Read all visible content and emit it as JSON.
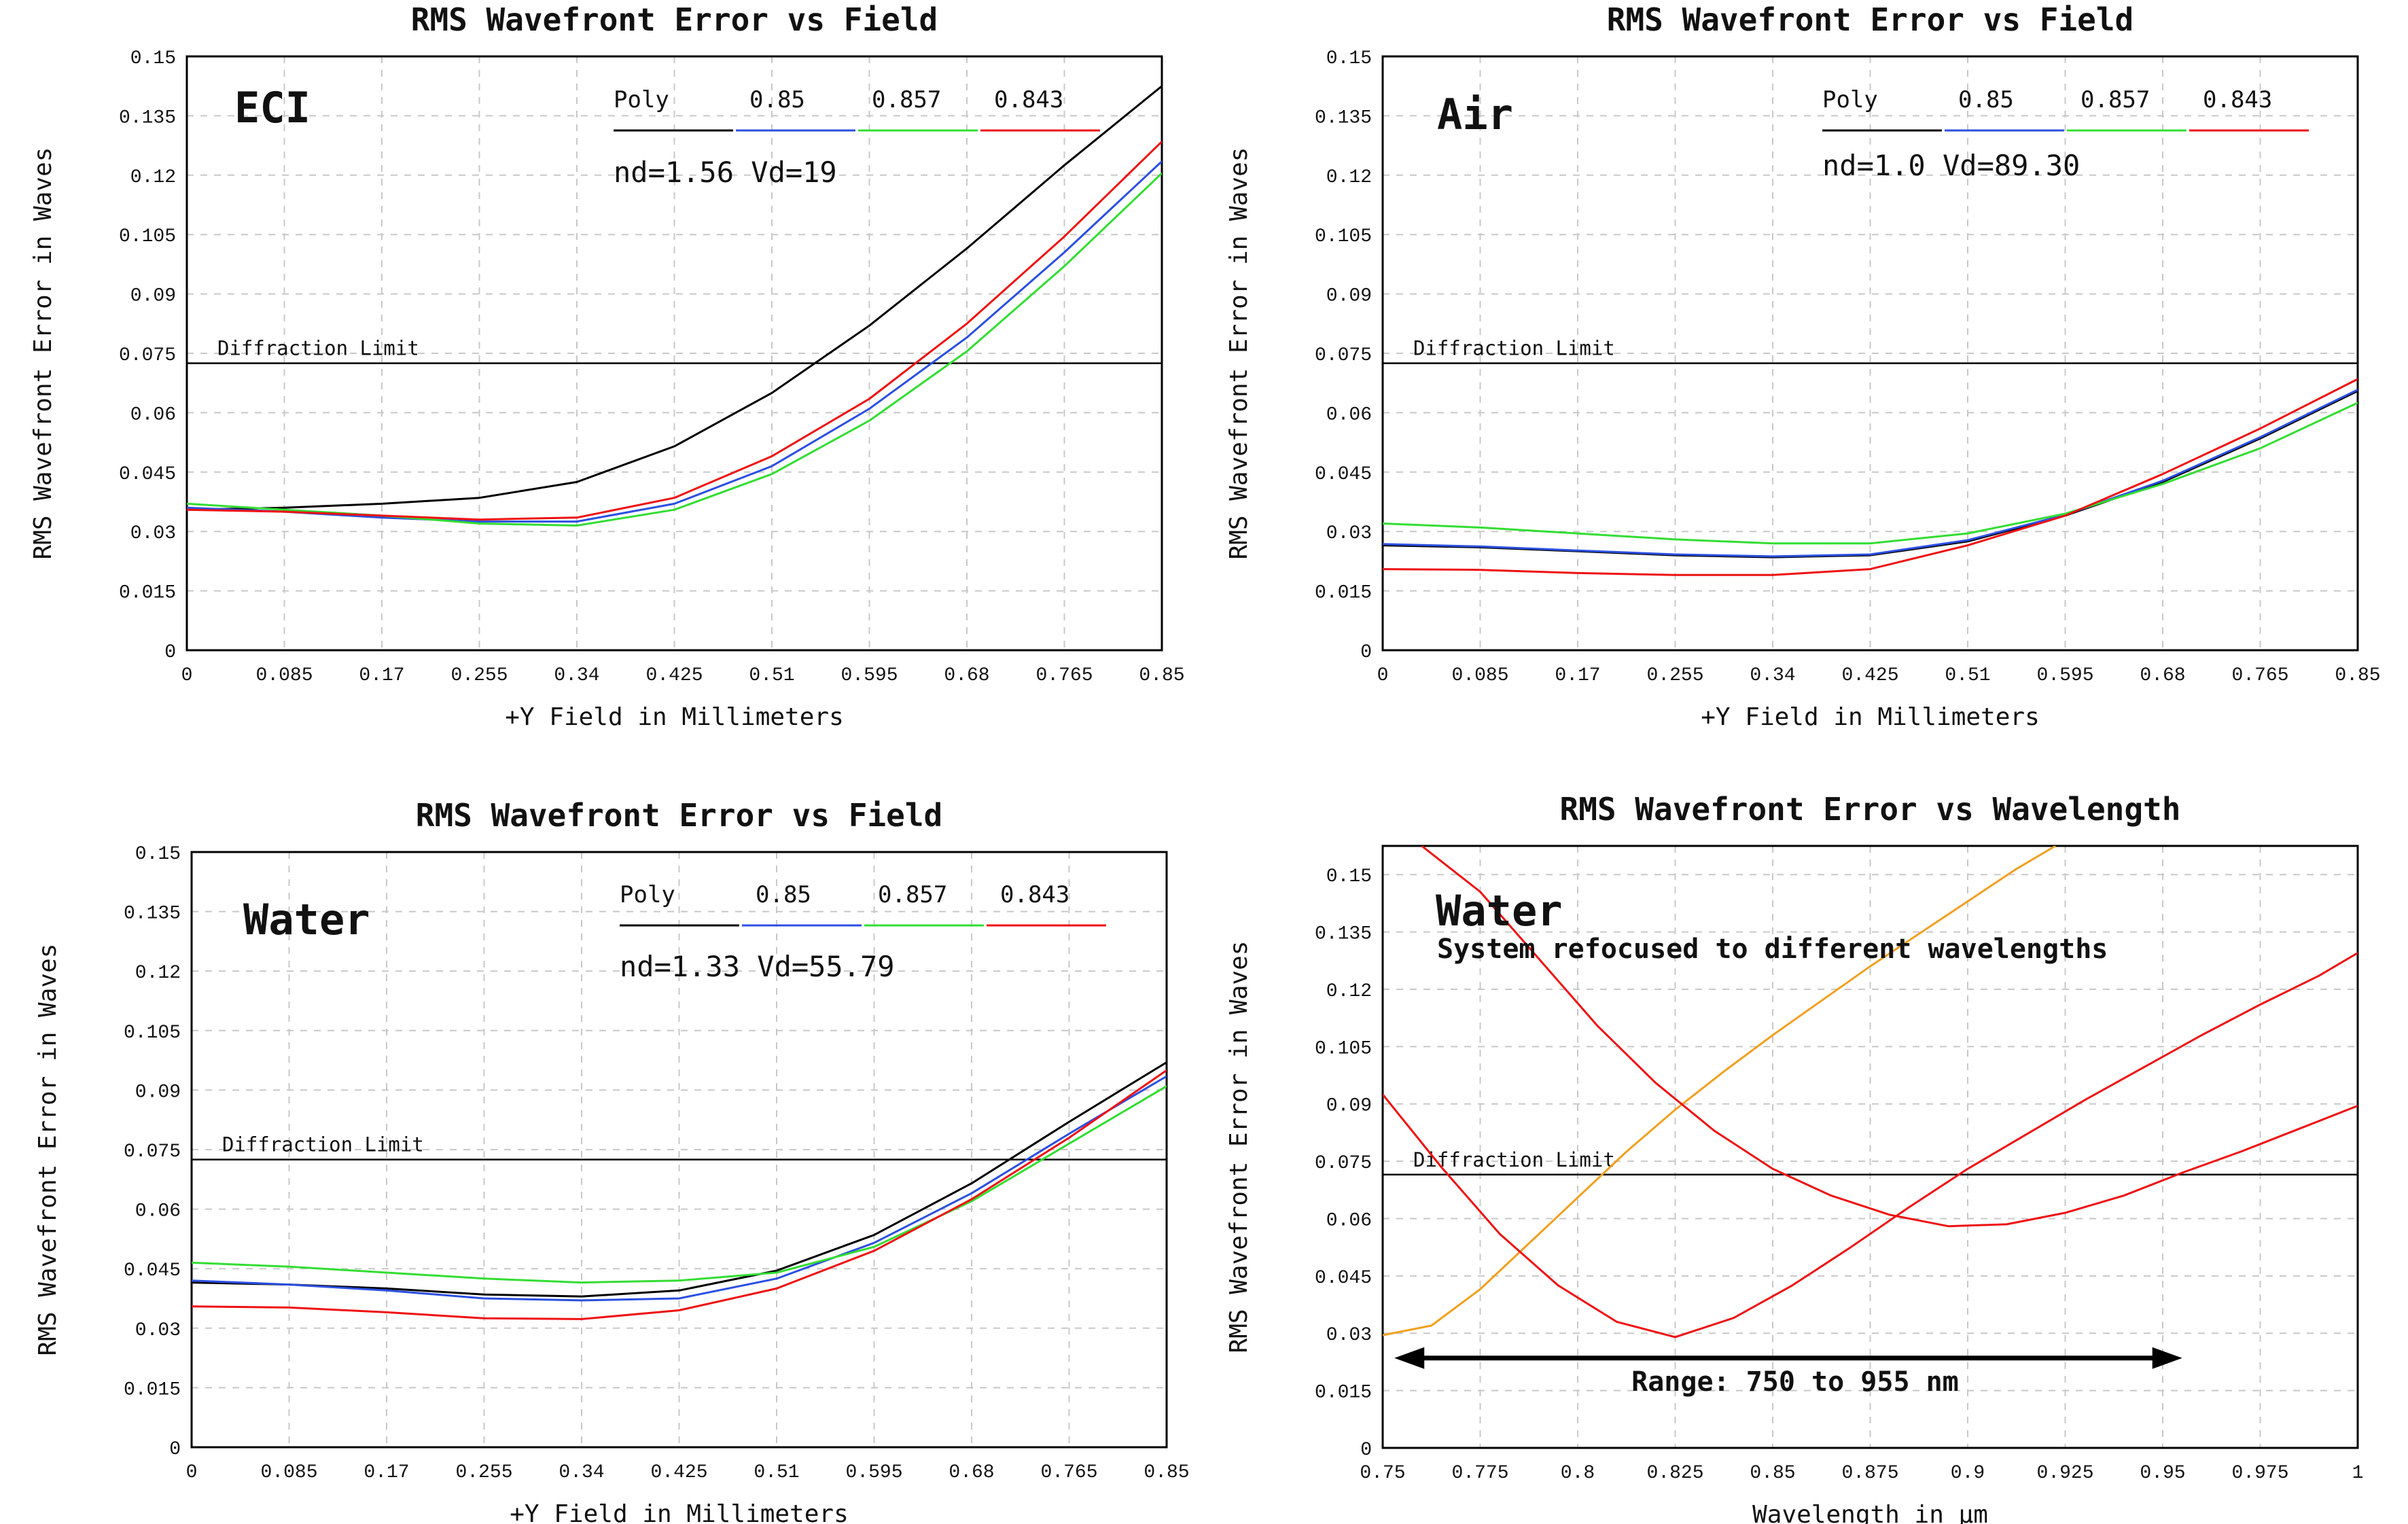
{
  "chart_data": [
    {
      "type": "line",
      "title": "RMS Wavefront Error vs Field",
      "xlabel": "+Y Field in Millimeters",
      "ylabel": "RMS Wavefront Error in Waves",
      "xlim": [
        0,
        0.85
      ],
      "ylim": [
        0,
        0.15
      ],
      "xticks": [
        "0",
        "0.085",
        "0.17",
        "0.255",
        "0.34",
        "0.425",
        "0.51",
        "0.595",
        "0.68",
        "0.765",
        "0.85"
      ],
      "yticks": [
        "0",
        "0.015",
        "0.03",
        "0.045",
        "0.06",
        "0.075",
        "0.09",
        "0.105",
        "0.12",
        "0.135",
        "0.15"
      ],
      "grid": true,
      "label": "ECI",
      "note": "nd=1.56 Vd=19",
      "legend": {
        "placement": "top-right",
        "entries": [
          "Poly",
          "0.85",
          "0.857",
          "0.843"
        ]
      },
      "reference_line": {
        "label": "Diffraction Limit",
        "value": 0.0725
      },
      "x": [
        0,
        0.085,
        0.17,
        0.255,
        0.34,
        0.425,
        0.51,
        0.595,
        0.68,
        0.765,
        0.85
      ],
      "series": [
        {
          "name": "Poly",
          "color": "#000000",
          "values": [
            0.0355,
            0.036,
            0.037,
            0.0385,
            0.0425,
            0.0515,
            0.065,
            0.082,
            0.1015,
            0.1225,
            0.1425
          ]
        },
        {
          "name": "0.85",
          "color": "#2b4fe0",
          "values": [
            0.036,
            0.035,
            0.0335,
            0.0325,
            0.0325,
            0.037,
            0.0465,
            0.061,
            0.079,
            0.1005,
            0.1235
          ]
        },
        {
          "name": "0.857",
          "color": "#33dd33",
          "values": [
            0.037,
            0.0355,
            0.034,
            0.032,
            0.0315,
            0.0355,
            0.0445,
            0.058,
            0.0755,
            0.097,
            0.1205
          ]
        },
        {
          "name": "0.843",
          "color": "#ee1111",
          "values": [
            0.0355,
            0.035,
            0.034,
            0.033,
            0.0335,
            0.0385,
            0.049,
            0.0635,
            0.0825,
            0.1045,
            0.1285
          ]
        }
      ]
    },
    {
      "type": "line",
      "title": "RMS Wavefront Error vs Field",
      "xlabel": "+Y Field in Millimeters",
      "ylabel": "RMS Wavefront Error in Waves",
      "xlim": [
        0,
        0.85
      ],
      "ylim": [
        0,
        0.15
      ],
      "xticks": [
        "0",
        "0.085",
        "0.17",
        "0.255",
        "0.34",
        "0.425",
        "0.51",
        "0.595",
        "0.68",
        "0.765",
        "0.85"
      ],
      "yticks": [
        "0",
        "0.015",
        "0.03",
        "0.045",
        "0.06",
        "0.075",
        "0.09",
        "0.105",
        "0.12",
        "0.135",
        "0.15"
      ],
      "grid": true,
      "label": "Air",
      "note": "nd=1.0 Vd=89.30",
      "legend": {
        "placement": "top-right",
        "entries": [
          "Poly",
          "0.85",
          "0.857",
          "0.843"
        ]
      },
      "reference_line": {
        "label": "Diffraction Limit",
        "value": 0.0725
      },
      "x": [
        0,
        0.085,
        0.17,
        0.255,
        0.34,
        0.425,
        0.51,
        0.595,
        0.68,
        0.765,
        0.85
      ],
      "series": [
        {
          "name": "Poly",
          "color": "#000000",
          "values": [
            0.0265,
            0.026,
            0.025,
            0.024,
            0.0235,
            0.024,
            0.0275,
            0.034,
            0.0425,
            0.0535,
            0.0655
          ]
        },
        {
          "name": "0.85",
          "color": "#2b4fe0",
          "values": [
            0.0268,
            0.0262,
            0.0252,
            0.0242,
            0.0237,
            0.0242,
            0.0278,
            0.0342,
            0.0428,
            0.0538,
            0.0658
          ]
        },
        {
          "name": "0.857",
          "color": "#33dd33",
          "values": [
            0.032,
            0.031,
            0.0295,
            0.028,
            0.027,
            0.027,
            0.0295,
            0.0345,
            0.042,
            0.051,
            0.0625
          ]
        },
        {
          "name": "0.843",
          "color": "#ee1111",
          "values": [
            0.0205,
            0.0203,
            0.0195,
            0.019,
            0.019,
            0.0205,
            0.0265,
            0.034,
            0.0445,
            0.056,
            0.0685
          ]
        }
      ]
    },
    {
      "type": "line",
      "title": "RMS Wavefront Error vs Field",
      "xlabel": "+Y Field in Millimeters",
      "ylabel": "RMS Wavefront Error in Waves",
      "xlim": [
        0,
        0.85
      ],
      "ylim": [
        0,
        0.15
      ],
      "xticks": [
        "0",
        "0.085",
        "0.17",
        "0.255",
        "0.34",
        "0.425",
        "0.51",
        "0.595",
        "0.68",
        "0.765",
        "0.85"
      ],
      "yticks": [
        "0",
        "0.015",
        "0.03",
        "0.045",
        "0.06",
        "0.075",
        "0.09",
        "0.105",
        "0.12",
        "0.135",
        "0.15"
      ],
      "grid": true,
      "label": "Water",
      "note": "nd=1.33 Vd=55.79",
      "legend": {
        "placement": "top-right",
        "entries": [
          "Poly",
          "0.85",
          "0.857",
          "0.843"
        ]
      },
      "reference_line": {
        "label": "Diffraction Limit",
        "value": 0.0725
      },
      "x": [
        0,
        0.085,
        0.17,
        0.255,
        0.34,
        0.425,
        0.51,
        0.595,
        0.68,
        0.765,
        0.85
      ],
      "series": [
        {
          "name": "Poly",
          "color": "#000000",
          "values": [
            0.0415,
            0.041,
            0.04,
            0.0385,
            0.038,
            0.0395,
            0.0445,
            0.0535,
            0.0665,
            0.082,
            0.097
          ]
        },
        {
          "name": "0.85",
          "color": "#2b4fe0",
          "values": [
            0.042,
            0.041,
            0.0395,
            0.0375,
            0.037,
            0.0375,
            0.0425,
            0.0515,
            0.064,
            0.079,
            0.0935
          ]
        },
        {
          "name": "0.857",
          "color": "#33dd33",
          "values": [
            0.0465,
            0.0455,
            0.044,
            0.0425,
            0.0415,
            0.042,
            0.044,
            0.0505,
            0.062,
            0.0765,
            0.091
          ]
        },
        {
          "name": "0.843",
          "color": "#ee1111",
          "values": [
            0.0355,
            0.0352,
            0.034,
            0.0325,
            0.0323,
            0.0345,
            0.04,
            0.0495,
            0.0625,
            0.078,
            0.095
          ]
        }
      ]
    },
    {
      "type": "line",
      "title": "RMS Wavefront Error vs Wavelength",
      "xlabel": "Wavelength in µm",
      "ylabel": "RMS Wavefront Error in Waves",
      "xlim": [
        0.75,
        1.0
      ],
      "ylim": [
        0,
        0.1575
      ],
      "xticks": [
        "0.75",
        "0.775",
        "0.8",
        "0.825",
        "0.85",
        "0.875",
        "0.9",
        "0.925",
        "0.95",
        "0.975",
        "1"
      ],
      "yticks": [
        "0",
        "0.015",
        "0.03",
        "0.045",
        "0.06",
        "0.075",
        "0.09",
        "0.105",
        "0.12",
        "0.135",
        "0.15"
      ],
      "grid": true,
      "label": "Water",
      "subtitle": "System refocused to different wavelengths",
      "range_annotation": {
        "text": "Range: 750 to 955 nm",
        "from": 0.753,
        "to": 0.955
      },
      "reference_line": {
        "label": "Diffraction Limit",
        "value": 0.0715
      },
      "series": [
        {
          "color": "#f0a020",
          "x": [
            0.75,
            0.7625,
            0.775,
            0.7875,
            0.8,
            0.8125,
            0.825,
            0.8375,
            0.85,
            0.8625,
            0.875,
            0.8875,
            0.9,
            0.9125,
            0.9225
          ],
          "values": [
            0.0295,
            0.032,
            0.0415,
            0.0535,
            0.0655,
            0.0775,
            0.0885,
            0.0985,
            0.108,
            0.117,
            0.126,
            0.1345,
            0.143,
            0.1515,
            0.1575
          ]
        },
        {
          "color": "#ee1111",
          "x": [
            0.76,
            0.775,
            0.79,
            0.805,
            0.82,
            0.835,
            0.85,
            0.865,
            0.88,
            0.895,
            0.91,
            0.925,
            0.94,
            0.955,
            0.97,
            0.985,
            1.0
          ],
          "values": [
            0.1575,
            0.1455,
            0.128,
            0.1105,
            0.0955,
            0.083,
            0.073,
            0.066,
            0.061,
            0.058,
            0.0585,
            0.0615,
            0.066,
            0.072,
            0.0775,
            0.0835,
            0.0895
          ]
        },
        {
          "color": "#ee1111",
          "x": [
            0.75,
            0.765,
            0.78,
            0.795,
            0.81,
            0.825,
            0.84,
            0.855,
            0.87,
            0.885,
            0.9,
            0.915,
            0.93,
            0.945,
            0.96,
            0.975,
            0.99,
            1.0
          ],
          "values": [
            0.0925,
            0.0735,
            0.056,
            0.0425,
            0.033,
            0.029,
            0.034,
            0.0425,
            0.0525,
            0.063,
            0.073,
            0.082,
            0.091,
            0.0995,
            0.108,
            0.116,
            0.1235,
            0.1295
          ]
        }
      ]
    }
  ]
}
